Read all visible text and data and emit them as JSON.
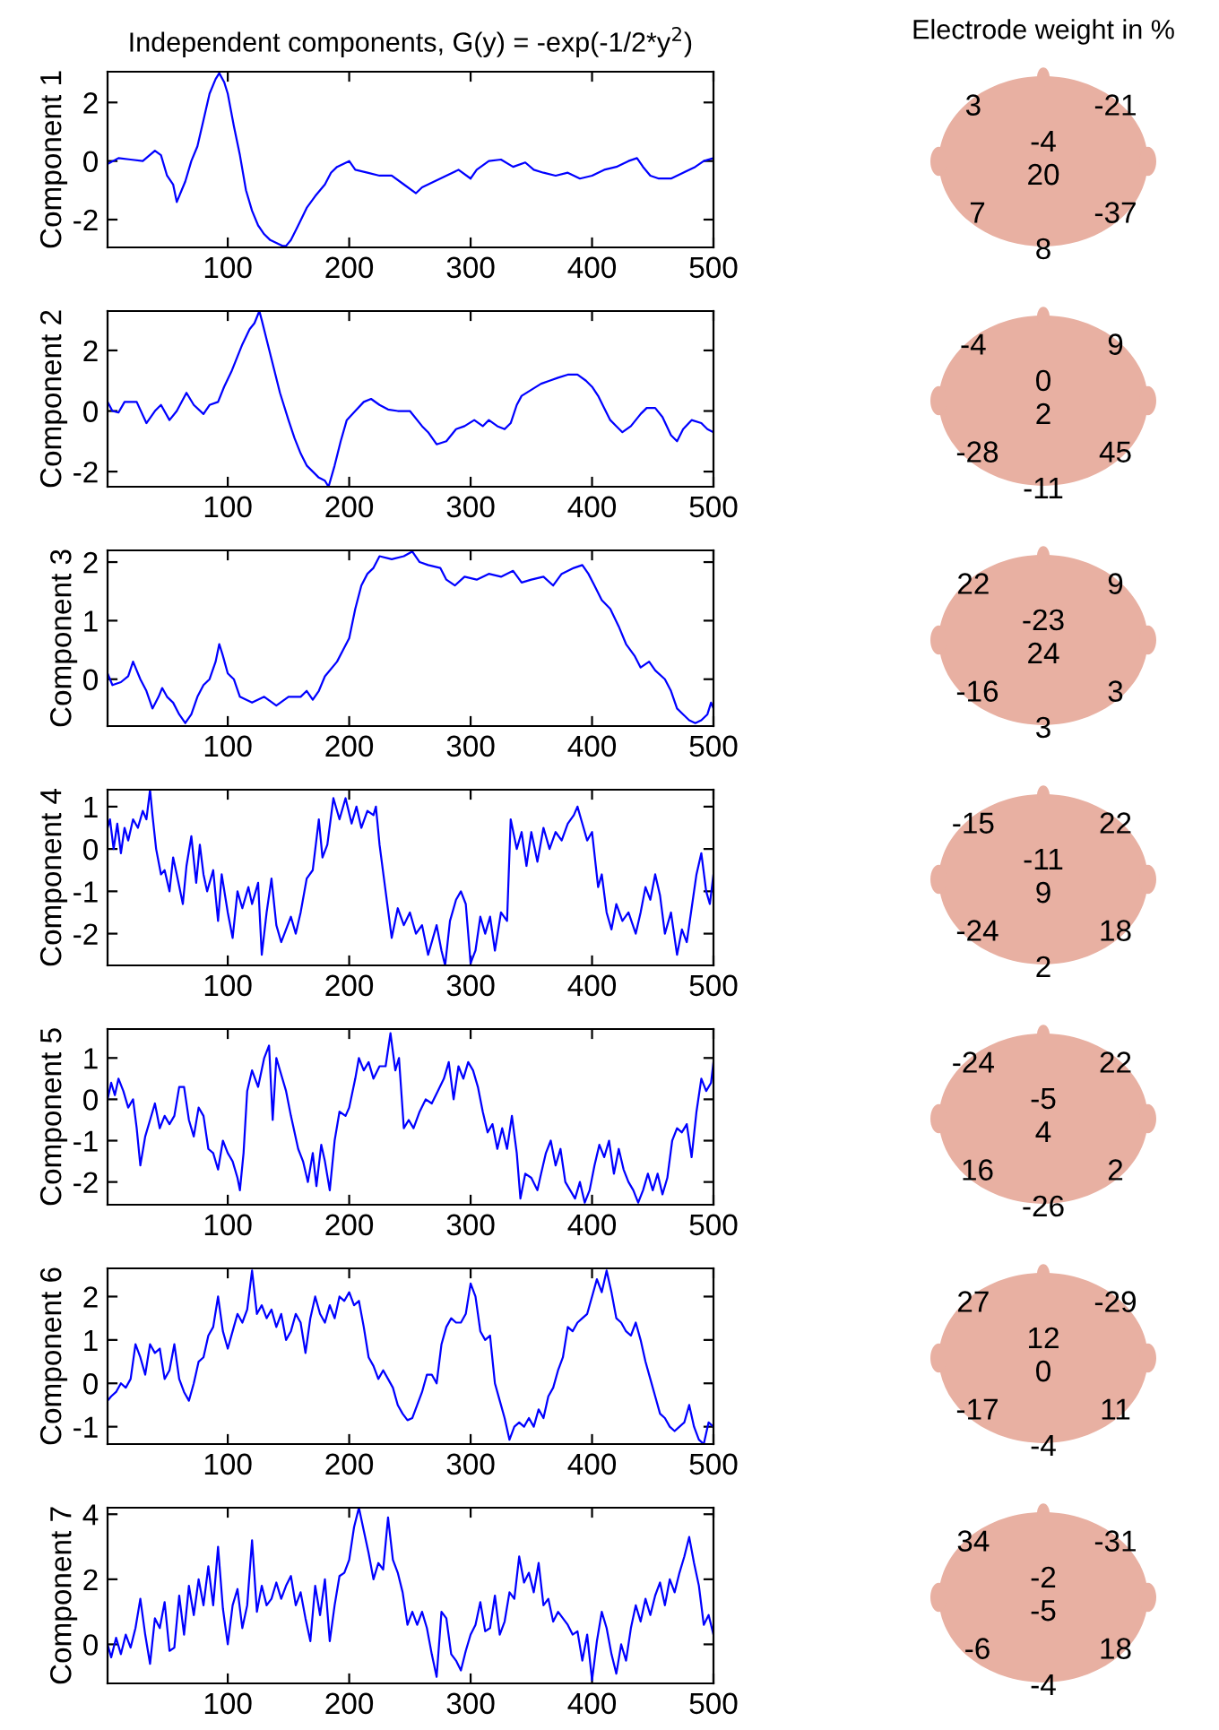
{
  "chart_data": [
    {
      "type": "line",
      "title": "Independent components, G(y) = -exp(-1/2*y$^{2}$)",
      "ylabel": "Component 1",
      "xlim": [
        1,
        500
      ],
      "ylim": [
        -2.95,
        3.05
      ],
      "xticks": [
        100,
        200,
        300,
        400,
        500
      ],
      "yticks": [
        -2,
        0,
        2
      ],
      "x": [
        1,
        10,
        20,
        30,
        40,
        45,
        50,
        55,
        58,
        62,
        65,
        70,
        75,
        80,
        85,
        90,
        93,
        97,
        100,
        105,
        110,
        115,
        120,
        125,
        130,
        135,
        140,
        145,
        148,
        152,
        158,
        165,
        172,
        180,
        185,
        190,
        195,
        200,
        205,
        215,
        225,
        235,
        245,
        255,
        260,
        270,
        280,
        290,
        300,
        305,
        315,
        325,
        335,
        345,
        352,
        360,
        370,
        380,
        390,
        400,
        410,
        420,
        430,
        437,
        442,
        448,
        455,
        465,
        475,
        485,
        492,
        500
      ],
      "series": [
        {
          "color": "#0000ff",
          "values": [
            -0.1,
            0.1,
            0.05,
            0.0,
            0.35,
            0.2,
            -0.5,
            -0.8,
            -1.4,
            -1.0,
            -0.7,
            0.0,
            0.5,
            1.4,
            2.3,
            2.8,
            3.0,
            2.7,
            2.3,
            1.2,
            0.2,
            -1.0,
            -1.7,
            -2.2,
            -2.5,
            -2.7,
            -2.8,
            -2.9,
            -2.9,
            -2.7,
            -2.2,
            -1.6,
            -1.2,
            -0.8,
            -0.4,
            -0.2,
            -0.1,
            0.0,
            -0.3,
            -0.4,
            -0.5,
            -0.5,
            -0.8,
            -1.1,
            -0.9,
            -0.7,
            -0.5,
            -0.3,
            -0.6,
            -0.3,
            0.0,
            0.05,
            -0.2,
            -0.05,
            -0.3,
            -0.4,
            -0.5,
            -0.4,
            -0.6,
            -0.5,
            -0.3,
            -0.2,
            0.0,
            0.1,
            -0.2,
            -0.5,
            -0.6,
            -0.6,
            -0.4,
            -0.2,
            0.0,
            0.1
          ]
        }
      ]
    },
    {
      "type": "other",
      "title": "Electrode weight in %",
      "annotations": [
        "3",
        "-21",
        "-4",
        "20",
        "7",
        "-37",
        "8"
      ]
    },
    {
      "type": "line",
      "ylabel": "Component 2",
      "xlim": [
        1,
        500
      ],
      "ylim": [
        -2.5,
        3.3
      ],
      "xticks": [
        100,
        200,
        300,
        400,
        500
      ],
      "yticks": [
        -2,
        0,
        2
      ],
      "x": [
        1,
        5,
        10,
        15,
        20,
        25,
        33,
        40,
        45,
        52,
        58,
        66,
        72,
        80,
        85,
        92,
        97,
        103,
        108,
        112,
        118,
        122,
        126,
        128,
        133,
        138,
        143,
        150,
        155,
        160,
        165,
        170,
        175,
        180,
        183,
        188,
        193,
        198,
        205,
        212,
        218,
        225,
        232,
        240,
        250,
        260,
        265,
        272,
        280,
        288,
        295,
        303,
        310,
        315,
        322,
        328,
        333,
        338,
        342,
        350,
        358,
        365,
        372,
        380,
        388,
        395,
        400,
        405,
        410,
        415,
        420,
        425,
        432,
        440,
        445,
        452,
        458,
        465,
        470,
        475,
        482,
        490,
        495,
        500
      ],
      "series": [
        {
          "color": "#0000ff",
          "values": [
            0.3,
            0.0,
            -0.05,
            0.3,
            0.3,
            0.3,
            -0.4,
            0.0,
            0.2,
            -0.3,
            0.0,
            0.6,
            0.2,
            -0.1,
            0.2,
            0.3,
            0.8,
            1.3,
            1.8,
            2.2,
            2.7,
            2.9,
            3.3,
            3.0,
            2.2,
            1.4,
            0.6,
            -0.3,
            -0.9,
            -1.4,
            -1.8,
            -2.0,
            -2.2,
            -2.3,
            -2.5,
            -1.8,
            -1.0,
            -0.3,
            0.0,
            0.3,
            0.4,
            0.2,
            0.05,
            0.0,
            0.0,
            -0.5,
            -0.7,
            -1.1,
            -1.0,
            -0.6,
            -0.5,
            -0.3,
            -0.5,
            -0.3,
            -0.5,
            -0.6,
            -0.4,
            0.2,
            0.5,
            0.7,
            0.9,
            1.0,
            1.1,
            1.2,
            1.2,
            1.0,
            0.8,
            0.5,
            0.1,
            -0.3,
            -0.5,
            -0.7,
            -0.5,
            -0.1,
            0.1,
            0.1,
            -0.2,
            -0.8,
            -1.0,
            -0.6,
            -0.3,
            -0.4,
            -0.6,
            -0.7
          ]
        }
      ]
    },
    {
      "type": "other",
      "annotations": [
        "-4",
        "9",
        "0",
        "2",
        "-28",
        "45",
        "-11"
      ]
    },
    {
      "type": "line",
      "ylabel": "Component 3",
      "xlim": [
        1,
        500
      ],
      "ylim": [
        -0.8,
        2.2
      ],
      "xticks": [
        100,
        200,
        300,
        400,
        500
      ],
      "yticks": [
        0,
        1,
        2
      ],
      "x": [
        1,
        5,
        12,
        18,
        22,
        28,
        33,
        38,
        43,
        46,
        50,
        55,
        60,
        65,
        70,
        75,
        80,
        85,
        90,
        93,
        96,
        100,
        105,
        110,
        115,
        120,
        130,
        140,
        150,
        160,
        165,
        170,
        175,
        180,
        190,
        195,
        200,
        205,
        210,
        215,
        220,
        225,
        235,
        245,
        252,
        258,
        265,
        275,
        280,
        287,
        295,
        305,
        315,
        325,
        335,
        342,
        350,
        360,
        368,
        375,
        385,
        392,
        397,
        402,
        408,
        415,
        422,
        428,
        435,
        440,
        447,
        452,
        460,
        465,
        470,
        475,
        480,
        485,
        490,
        495,
        498,
        500
      ],
      "series": [
        {
          "color": "#0000ff",
          "values": [
            0.1,
            -0.1,
            -0.05,
            0.05,
            0.3,
            0.0,
            -0.2,
            -0.5,
            -0.3,
            -0.15,
            -0.3,
            -0.4,
            -0.6,
            -0.75,
            -0.6,
            -0.3,
            -0.1,
            0.0,
            0.3,
            0.6,
            0.4,
            0.1,
            0.0,
            -0.3,
            -0.35,
            -0.4,
            -0.3,
            -0.45,
            -0.3,
            -0.3,
            -0.2,
            -0.35,
            -0.2,
            0.05,
            0.3,
            0.5,
            0.7,
            1.2,
            1.6,
            1.8,
            1.9,
            2.1,
            2.05,
            2.1,
            2.18,
            2.0,
            1.95,
            1.9,
            1.7,
            1.6,
            1.75,
            1.7,
            1.8,
            1.75,
            1.85,
            1.65,
            1.7,
            1.75,
            1.6,
            1.8,
            1.9,
            1.95,
            1.8,
            1.6,
            1.35,
            1.2,
            0.9,
            0.6,
            0.4,
            0.2,
            0.3,
            0.15,
            0.0,
            -0.2,
            -0.5,
            -0.6,
            -0.7,
            -0.75,
            -0.7,
            -0.6,
            -0.4,
            -0.5
          ]
        }
      ]
    },
    {
      "type": "other",
      "annotations": [
        "22",
        "9",
        "-23",
        "24",
        "-16",
        "3",
        "3"
      ]
    },
    {
      "type": "line",
      "ylabel": "Component 4",
      "xlim": [
        1,
        500
      ],
      "ylim": [
        -2.75,
        1.4
      ],
      "xticks": [
        100,
        200,
        300,
        400,
        500
      ],
      "yticks": [
        -2,
        -1,
        0,
        1
      ],
      "x": [
        1,
        3,
        6,
        9,
        12,
        15,
        18,
        22,
        26,
        30,
        33,
        36,
        38,
        41,
        45,
        48,
        52,
        55,
        58,
        63,
        66,
        70,
        74,
        77,
        80,
        83,
        88,
        92,
        95,
        100,
        104,
        108,
        112,
        117,
        120,
        125,
        128,
        132,
        136,
        140,
        144,
        148,
        152,
        156,
        160,
        165,
        170,
        175,
        178,
        182,
        187,
        192,
        197,
        202,
        206,
        210,
        215,
        220,
        222,
        225,
        230,
        235,
        240,
        245,
        250,
        255,
        260,
        265,
        272,
        276,
        279,
        283,
        288,
        292,
        296,
        300,
        304,
        308,
        312,
        316,
        320,
        325,
        330,
        333,
        338,
        342,
        346,
        350,
        355,
        360,
        365,
        370,
        375,
        380,
        385,
        388,
        392,
        396,
        400,
        405,
        408,
        412,
        416,
        420,
        425,
        430,
        436,
        440,
        444,
        448,
        452,
        456,
        460,
        465,
        470,
        474,
        478,
        482,
        486,
        490,
        494,
        497,
        500
      ],
      "series": [
        {
          "color": "#0000ff",
          "values": [
            0.5,
            0.7,
            0.0,
            0.6,
            -0.1,
            0.5,
            0.2,
            0.7,
            0.5,
            0.9,
            0.7,
            1.4,
            0.8,
            0.0,
            -0.6,
            -0.5,
            -1.0,
            -0.2,
            -0.6,
            -1.3,
            -0.4,
            0.3,
            -0.8,
            0.1,
            -0.6,
            -1.0,
            -0.5,
            -1.7,
            -0.6,
            -1.5,
            -2.1,
            -1.0,
            -1.4,
            -0.9,
            -1.3,
            -0.8,
            -2.5,
            -1.5,
            -0.7,
            -1.8,
            -2.2,
            -1.9,
            -1.6,
            -2.0,
            -1.5,
            -0.7,
            -0.5,
            0.7,
            -0.2,
            0.1,
            1.2,
            0.7,
            1.2,
            0.6,
            1.0,
            0.5,
            0.9,
            0.8,
            1.0,
            0.1,
            -1.0,
            -2.1,
            -1.4,
            -1.8,
            -1.5,
            -2.0,
            -1.8,
            -2.5,
            -1.8,
            -2.4,
            -2.75,
            -1.7,
            -1.2,
            -1.0,
            -1.3,
            -2.7,
            -2.4,
            -1.6,
            -2.0,
            -1.6,
            -2.4,
            -1.5,
            -1.7,
            0.7,
            0.0,
            0.4,
            -0.4,
            0.4,
            -0.3,
            0.5,
            0.0,
            0.4,
            0.2,
            0.6,
            0.8,
            1.0,
            0.6,
            0.2,
            0.4,
            -0.9,
            -0.6,
            -1.5,
            -1.9,
            -1.3,
            -1.7,
            -1.5,
            -2.0,
            -1.5,
            -0.9,
            -1.2,
            -0.6,
            -1.1,
            -2.0,
            -1.5,
            -2.5,
            -1.9,
            -2.2,
            -1.4,
            -0.6,
            -0.1,
            -1.0,
            -1.3,
            -0.6
          ]
        }
      ]
    },
    {
      "type": "other",
      "annotations": [
        "-15",
        "22",
        "-11",
        "9",
        "-24",
        "18",
        "2"
      ]
    },
    {
      "type": "line",
      "ylabel": "Component 5",
      "xlim": [
        1,
        500
      ],
      "ylim": [
        -2.55,
        1.7
      ],
      "xticks": [
        100,
        200,
        300,
        400,
        500
      ],
      "yticks": [
        -2,
        -1,
        0,
        1
      ],
      "x": [
        1,
        4,
        7,
        10,
        14,
        18,
        22,
        25,
        28,
        32,
        36,
        40,
        44,
        48,
        52,
        56,
        60,
        64,
        68,
        72,
        76,
        80,
        84,
        88,
        92,
        96,
        100,
        104,
        108,
        110,
        113,
        116,
        120,
        125,
        130,
        134,
        137,
        140,
        144,
        148,
        152,
        155,
        158,
        162,
        166,
        170,
        173,
        177,
        180,
        184,
        188,
        192,
        197,
        200,
        205,
        208,
        212,
        216,
        220,
        225,
        230,
        234,
        238,
        241,
        245,
        249,
        253,
        258,
        263,
        268,
        273,
        278,
        282,
        286,
        290,
        294,
        298,
        302,
        306,
        310,
        314,
        318,
        322,
        326,
        330,
        334,
        338,
        341,
        345,
        350,
        355,
        358,
        362,
        366,
        370,
        374,
        378,
        382,
        386,
        390,
        394,
        398,
        402,
        406,
        410,
        414,
        418,
        422,
        426,
        430,
        434,
        438,
        442,
        446,
        450,
        454,
        458,
        462,
        466,
        470,
        474,
        478,
        482,
        486,
        490,
        494,
        498,
        500
      ],
      "series": [
        {
          "color": "#0000ff",
          "values": [
            0.0,
            0.4,
            0.1,
            0.5,
            0.2,
            -0.2,
            0.0,
            -0.7,
            -1.6,
            -0.9,
            -0.5,
            -0.1,
            -0.7,
            -0.4,
            -0.6,
            -0.4,
            0.3,
            0.3,
            -0.5,
            -0.9,
            -0.2,
            -0.4,
            -1.2,
            -1.3,
            -1.7,
            -1.0,
            -1.3,
            -1.5,
            -1.9,
            -2.2,
            -1.3,
            0.2,
            0.7,
            0.3,
            1.0,
            1.3,
            -0.5,
            1.0,
            0.6,
            0.2,
            -0.4,
            -0.8,
            -1.2,
            -1.5,
            -2.0,
            -1.3,
            -2.1,
            -1.1,
            -1.5,
            -2.2,
            -1.0,
            -0.3,
            -0.4,
            -0.2,
            0.5,
            1.0,
            0.7,
            0.9,
            0.5,
            0.8,
            0.8,
            1.6,
            0.7,
            1.0,
            -0.7,
            -0.5,
            -0.7,
            -0.3,
            0.0,
            -0.1,
            0.2,
            0.5,
            0.9,
            0.0,
            0.8,
            0.5,
            0.9,
            0.7,
            0.3,
            -0.3,
            -0.8,
            -0.6,
            -1.2,
            -0.7,
            -1.2,
            -0.4,
            -1.3,
            -2.4,
            -1.8,
            -1.9,
            -2.2,
            -1.8,
            -1.3,
            -1.0,
            -1.6,
            -1.2,
            -2.0,
            -2.2,
            -2.4,
            -2.0,
            -2.5,
            -2.2,
            -1.6,
            -1.1,
            -1.4,
            -1.0,
            -1.8,
            -1.2,
            -1.7,
            -2.0,
            -2.2,
            -2.5,
            -2.2,
            -1.8,
            -2.2,
            -1.8,
            -2.3,
            -1.9,
            -1.0,
            -0.7,
            -0.8,
            -0.6,
            -1.4,
            -0.3,
            0.5,
            0.2,
            0.4,
            0.9
          ]
        }
      ]
    },
    {
      "type": "other",
      "annotations": [
        "-24",
        "22",
        "-5",
        "4",
        "16",
        "2",
        "-26"
      ]
    },
    {
      "type": "line",
      "ylabel": "Component 6",
      "xlim": [
        1,
        500
      ],
      "ylim": [
        -1.4,
        2.65
      ],
      "xticks": [
        100,
        200,
        300,
        400,
        500
      ],
      "yticks": [
        -1,
        0,
        1,
        2
      ],
      "x": [
        1,
        4,
        8,
        12,
        16,
        20,
        24,
        28,
        32,
        36,
        40,
        44,
        48,
        52,
        56,
        60,
        64,
        68,
        72,
        76,
        80,
        84,
        88,
        92,
        96,
        100,
        104,
        108,
        112,
        116,
        120,
        124,
        128,
        132,
        136,
        140,
        144,
        148,
        152,
        156,
        160,
        164,
        168,
        172,
        176,
        180,
        184,
        188,
        192,
        196,
        200,
        204,
        208,
        212,
        216,
        220,
        224,
        228,
        232,
        236,
        240,
        244,
        248,
        252,
        256,
        260,
        264,
        268,
        272,
        276,
        280,
        284,
        288,
        292,
        296,
        300,
        304,
        308,
        312,
        316,
        320,
        324,
        328,
        332,
        336,
        340,
        344,
        348,
        352,
        356,
        360,
        364,
        368,
        372,
        376,
        380,
        384,
        388,
        392,
        396,
        400,
        404,
        408,
        412,
        416,
        420,
        424,
        428,
        432,
        436,
        440,
        444,
        448,
        452,
        456,
        460,
        464,
        468,
        472,
        476,
        480,
        484,
        488,
        492,
        496,
        500
      ],
      "series": [
        {
          "color": "#0000ff",
          "values": [
            -0.4,
            -0.3,
            -0.2,
            0.0,
            -0.1,
            0.1,
            0.9,
            0.6,
            0.2,
            0.9,
            0.7,
            0.8,
            0.1,
            0.3,
            0.9,
            0.1,
            -0.2,
            -0.4,
            0.0,
            0.5,
            0.6,
            1.1,
            1.3,
            2.0,
            1.2,
            0.8,
            1.2,
            1.6,
            1.4,
            1.7,
            2.6,
            1.6,
            1.8,
            1.5,
            1.7,
            1.3,
            1.6,
            1.0,
            1.2,
            1.6,
            1.4,
            0.7,
            1.5,
            2.0,
            1.6,
            1.4,
            1.8,
            1.5,
            2.0,
            1.9,
            2.1,
            1.8,
            1.9,
            1.3,
            0.6,
            0.4,
            0.1,
            0.3,
            0.1,
            -0.1,
            -0.5,
            -0.7,
            -0.85,
            -0.8,
            -0.5,
            -0.2,
            0.2,
            0.2,
            0.0,
            0.9,
            1.3,
            1.5,
            1.4,
            1.4,
            1.6,
            2.3,
            2.0,
            1.2,
            1.0,
            1.1,
            0.0,
            -0.4,
            -0.8,
            -1.3,
            -1.0,
            -0.9,
            -1.0,
            -0.8,
            -1.0,
            -0.6,
            -0.8,
            -0.3,
            -0.1,
            0.3,
            0.6,
            1.3,
            1.2,
            1.4,
            1.5,
            1.6,
            2.0,
            2.4,
            2.1,
            2.6,
            2.1,
            1.5,
            1.4,
            1.2,
            1.1,
            1.4,
            1.0,
            0.5,
            0.1,
            -0.3,
            -0.7,
            -0.8,
            -1.0,
            -1.1,
            -1.0,
            -0.9,
            -0.5,
            -1.0,
            -1.3,
            -1.4,
            -0.9,
            -1.0
          ]
        }
      ]
    },
    {
      "type": "other",
      "annotations": [
        "27",
        "-29",
        "12",
        "0",
        "-17",
        "11",
        "-4"
      ]
    },
    {
      "type": "line",
      "ylabel": "Component 7",
      "xlim": [
        1,
        500
      ],
      "ylim": [
        -1.2,
        4.2
      ],
      "xticks": [
        100,
        200,
        300,
        400,
        500
      ],
      "yticks": [
        0,
        2,
        4
      ],
      "x": [
        1,
        4,
        8,
        12,
        16,
        20,
        24,
        28,
        32,
        36,
        40,
        44,
        48,
        52,
        56,
        60,
        64,
        68,
        72,
        76,
        80,
        84,
        88,
        92,
        96,
        100,
        104,
        108,
        112,
        116,
        120,
        124,
        128,
        132,
        136,
        140,
        144,
        148,
        152,
        156,
        160,
        164,
        168,
        172,
        176,
        180,
        184,
        188,
        192,
        196,
        200,
        204,
        208,
        212,
        216,
        220,
        224,
        228,
        232,
        236,
        240,
        244,
        248,
        252,
        256,
        260,
        264,
        268,
        272,
        276,
        280,
        284,
        288,
        292,
        296,
        300,
        304,
        308,
        312,
        316,
        320,
        324,
        328,
        332,
        336,
        340,
        344,
        348,
        352,
        356,
        360,
        364,
        368,
        372,
        376,
        380,
        384,
        388,
        392,
        396,
        400,
        404,
        408,
        412,
        416,
        420,
        424,
        428,
        432,
        436,
        440,
        444,
        448,
        452,
        456,
        460,
        464,
        468,
        472,
        476,
        480,
        484,
        488,
        492,
        496,
        500
      ],
      "series": [
        {
          "color": "#0000ff",
          "values": [
            0.0,
            -0.4,
            0.2,
            -0.3,
            0.3,
            -0.1,
            0.5,
            1.4,
            0.3,
            -0.6,
            0.8,
            0.5,
            1.3,
            -0.2,
            -0.1,
            1.5,
            0.3,
            1.8,
            0.9,
            2.0,
            1.2,
            2.4,
            1.2,
            3.0,
            1.1,
            0.0,
            1.2,
            1.7,
            0.5,
            1.2,
            3.2,
            1.0,
            1.8,
            1.2,
            1.4,
            1.9,
            1.4,
            1.8,
            2.1,
            1.2,
            1.6,
            0.8,
            0.1,
            1.8,
            0.9,
            2.0,
            0.1,
            1.2,
            2.1,
            2.2,
            2.6,
            3.6,
            4.2,
            3.5,
            2.8,
            2.0,
            2.5,
            2.3,
            3.9,
            2.6,
            2.2,
            1.6,
            0.6,
            1.0,
            0.6,
            1.0,
            0.5,
            -0.3,
            -1.0,
            1.0,
            0.8,
            -0.3,
            -0.5,
            -0.8,
            -0.2,
            0.3,
            0.6,
            1.3,
            0.4,
            0.5,
            1.5,
            0.3,
            0.7,
            1.6,
            1.4,
            2.7,
            1.9,
            2.2,
            1.6,
            2.5,
            1.2,
            1.4,
            0.7,
            1.0,
            0.8,
            0.6,
            0.3,
            0.4,
            -0.5,
            0.3,
            -1.1,
            0.1,
            1.0,
            0.5,
            -0.3,
            -0.9,
            0.0,
            -0.5,
            0.5,
            1.2,
            0.7,
            1.4,
            0.9,
            1.5,
            1.9,
            1.2,
            2.0,
            1.6,
            2.2,
            2.7,
            3.3,
            2.5,
            1.8,
            0.6,
            0.9,
            0.3
          ]
        }
      ]
    },
    {
      "type": "other",
      "annotations": [
        "34",
        "-31",
        "-2",
        "-5",
        "-6",
        "18",
        "-4"
      ]
    }
  ]
}
